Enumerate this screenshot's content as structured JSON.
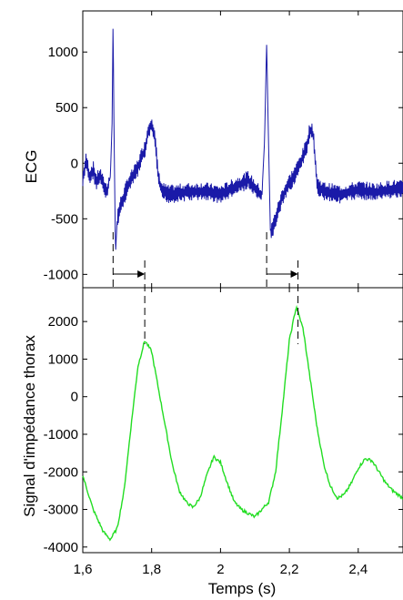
{
  "chart_data": [
    {
      "type": "line",
      "ylabel": "ECG",
      "ylim": [
        -1120,
        1370
      ],
      "yticks": [
        1000,
        500,
        0,
        -500,
        -1000
      ],
      "ytick_labels": [
        "1000",
        "500",
        "0",
        "-500",
        "-1000"
      ],
      "xlim": [
        1.6,
        2.53
      ],
      "color": "#1a1aa8",
      "qrs_peaks_x": [
        1.688,
        2.134
      ],
      "qrs_peak_values": [
        1310,
        1080
      ],
      "s_trough_values": [
        -820,
        -650
      ],
      "t_wave_peak_values": [
        370,
        300
      ],
      "noise_amplitude": 70,
      "series": [
        {
          "name": "",
          "x": [
            1.6,
            1.61,
            1.62,
            1.63,
            1.64,
            1.65,
            1.66,
            1.67,
            1.68,
            1.685,
            1.688,
            1.69,
            1.695,
            1.7,
            1.71,
            1.72,
            1.73,
            1.74,
            1.75,
            1.76,
            1.77,
            1.78,
            1.79,
            1.8,
            1.81,
            1.82,
            1.83,
            1.85,
            1.9,
            1.95,
            2.0,
            2.05,
            2.08,
            2.1,
            2.12,
            2.128,
            2.134,
            2.138,
            2.145,
            2.16,
            2.18,
            2.2,
            2.22,
            2.24,
            2.25,
            2.26,
            2.27,
            2.28,
            2.3,
            2.35,
            2.4,
            2.45,
            2.5,
            2.53
          ],
          "y": [
            -150,
            20,
            -120,
            -60,
            -170,
            -110,
            -200,
            -260,
            -120,
            350,
            1310,
            500,
            -820,
            -500,
            -380,
            -300,
            -200,
            -150,
            -100,
            -40,
            50,
            120,
            280,
            370,
            200,
            -150,
            -250,
            -280,
            -260,
            -250,
            -280,
            -200,
            -150,
            -230,
            -300,
            200,
            1080,
            400,
            -650,
            -500,
            -300,
            -180,
            -80,
            60,
            150,
            300,
            250,
            -200,
            -250,
            -280,
            -240,
            -260,
            -230,
            -240
          ]
        }
      ]
    },
    {
      "type": "line",
      "xlabel": "Temps (s)",
      "ylabel": "Signal d'impédance thorax",
      "ylim": [
        -4150,
        2900
      ],
      "yticks": [
        2000,
        1000,
        0,
        -1000,
        -2000,
        -3000,
        -4000
      ],
      "ytick_labels": [
        "2000",
        "1000",
        "0",
        "-1000",
        "-2000",
        "-3000",
        "-4000"
      ],
      "xlim": [
        1.6,
        2.53
      ],
      "xticks": [
        1.6,
        1.8,
        2.0,
        2.2,
        2.4
      ],
      "xtick_labels": [
        "1,6",
        "1,8",
        "2",
        "2,2",
        "2,4"
      ],
      "color": "#22dd22",
      "series": [
        {
          "name": "",
          "x": [
            1.6,
            1.63,
            1.66,
            1.68,
            1.7,
            1.72,
            1.74,
            1.76,
            1.78,
            1.8,
            1.82,
            1.84,
            1.86,
            1.88,
            1.9,
            1.92,
            1.94,
            1.96,
            1.98,
            2.0,
            2.02,
            2.04,
            2.06,
            2.08,
            2.1,
            2.12,
            2.14,
            2.16,
            2.18,
            2.2,
            2.22,
            2.24,
            2.26,
            2.28,
            2.3,
            2.32,
            2.34,
            2.36,
            2.38,
            2.4,
            2.42,
            2.44,
            2.46,
            2.48,
            2.5,
            2.53
          ],
          "y": [
            -2100,
            -3000,
            -3600,
            -3800,
            -3500,
            -2500,
            -800,
            800,
            1500,
            1200,
            200,
            -800,
            -1800,
            -2500,
            -2800,
            -2950,
            -2700,
            -2100,
            -1600,
            -1750,
            -2300,
            -2800,
            -3000,
            -3100,
            -3200,
            -3000,
            -2800,
            -2000,
            -300,
            1500,
            2400,
            1800,
            500,
            -800,
            -1800,
            -2400,
            -2700,
            -2600,
            -2300,
            -1900,
            -1650,
            -1700,
            -2000,
            -2300,
            -2500,
            -2700
          ]
        }
      ]
    }
  ]
}
